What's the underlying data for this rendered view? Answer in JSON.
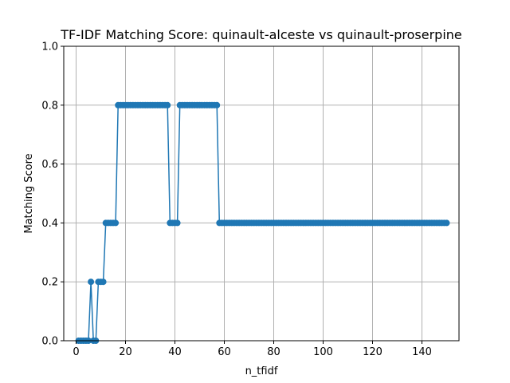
{
  "chart_data": {
    "type": "line",
    "title": "TF-IDF Matching Score: quinault-alceste vs quinault-proserpine",
    "xlabel": "n_tfidf",
    "ylabel": "Matching Score",
    "xlim": [
      -5,
      155
    ],
    "ylim": [
      0,
      1.0
    ],
    "xticks": [
      0,
      20,
      40,
      60,
      80,
      100,
      120,
      140
    ],
    "yticks": [
      0.0,
      0.2,
      0.4,
      0.6,
      0.8,
      1.0
    ],
    "xtick_labels": [
      "0",
      "20",
      "40",
      "60",
      "80",
      "100",
      "120",
      "140"
    ],
    "ytick_labels": [
      "0.0",
      "0.2",
      "0.4",
      "0.6",
      "0.8",
      "1.0"
    ],
    "grid": true,
    "color": "#1f77b4",
    "series": [
      {
        "segments": [
          {
            "from": 1,
            "to": 5,
            "value": 0.0
          },
          {
            "from": 6,
            "to": 6,
            "value": 0.2
          },
          {
            "from": 7,
            "to": 8,
            "value": 0.0
          },
          {
            "from": 9,
            "to": 11,
            "value": 0.2
          },
          {
            "from": 12,
            "to": 16,
            "value": 0.4
          },
          {
            "from": 17,
            "to": 37,
            "value": 0.8
          },
          {
            "from": 38,
            "to": 41,
            "value": 0.4
          },
          {
            "from": 42,
            "to": 57,
            "value": 0.8
          },
          {
            "from": 58,
            "to": 150,
            "value": 0.4
          }
        ]
      }
    ]
  }
}
